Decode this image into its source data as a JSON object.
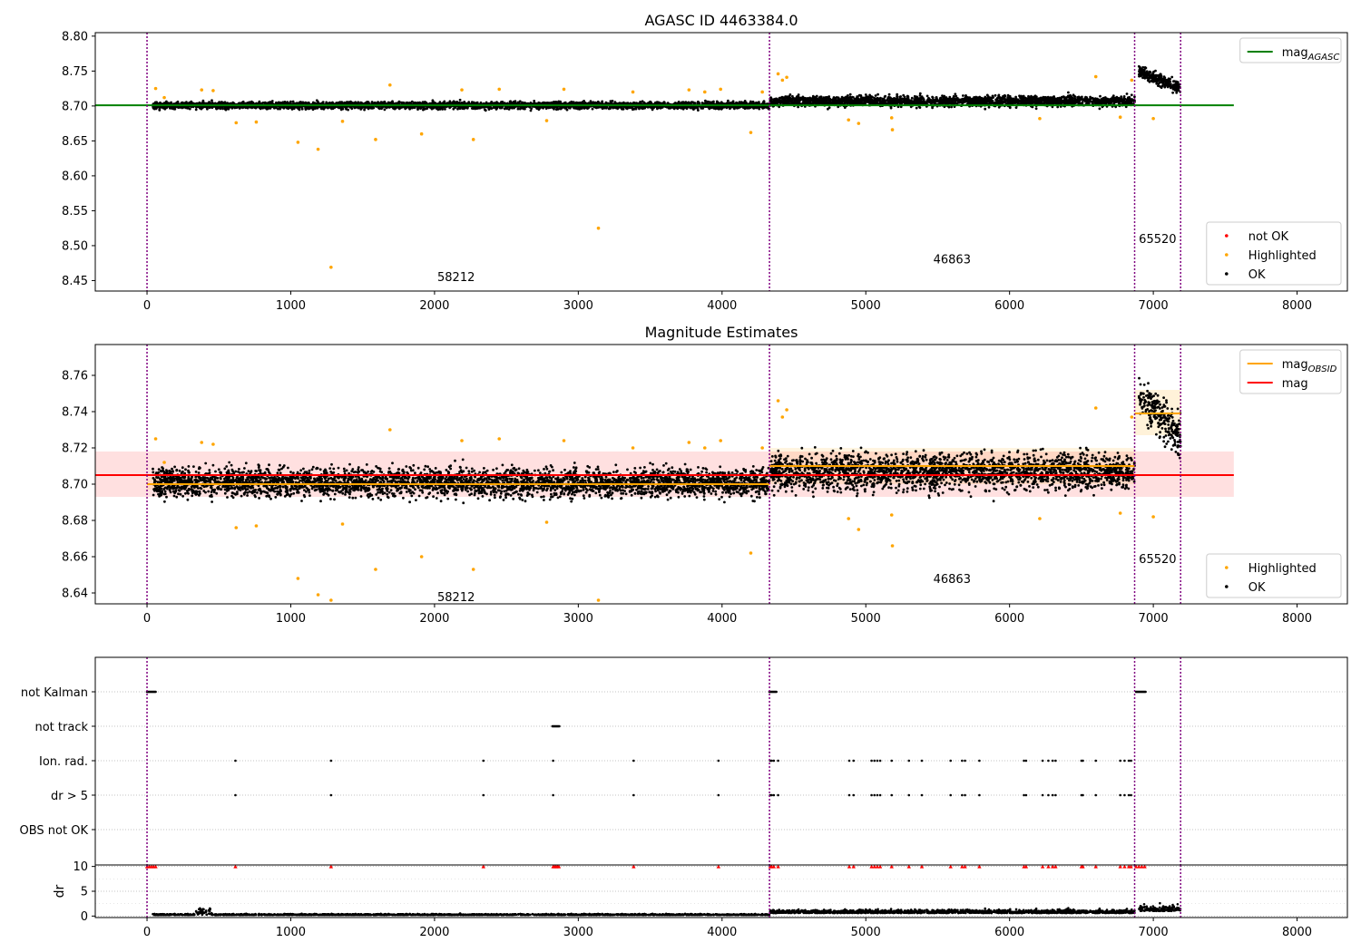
{
  "chart_data": [
    {
      "type": "scatter",
      "title": "AGASC ID 4463384.0",
      "xlim": [
        -360,
        8350
      ],
      "ylim": [
        8.435,
        8.805
      ],
      "xticks": [
        0,
        1000,
        2000,
        3000,
        4000,
        5000,
        6000,
        7000,
        8000
      ],
      "yticks": [
        8.45,
        8.5,
        8.55,
        8.6,
        8.65,
        8.7,
        8.75,
        8.8
      ],
      "ytick_decimals": 2,
      "grid": false,
      "obs_boundaries": [
        0,
        4330,
        6870,
        7190
      ],
      "obsid_labels": [
        {
          "text": "58212",
          "x": 2150,
          "y": 8.456
        },
        {
          "text": "46863",
          "x": 5600,
          "y": 8.481
        },
        {
          "text": "65520",
          "x": 7030,
          "y": 8.51
        }
      ],
      "lines": [
        {
          "name": "mag_AGASC",
          "color": "#008000",
          "x": [
            -360,
            7560
          ],
          "y": [
            8.701,
            8.701
          ]
        }
      ],
      "legends": [
        {
          "position": "top-right",
          "entries": [
            {
              "kind": "line",
              "color": "#008000",
              "label": "mag",
              "sub": "AGASC"
            }
          ]
        },
        {
          "position": "bottom-right",
          "entries": [
            {
              "kind": "dot",
              "color": "#ff0000",
              "label": "not OK"
            },
            {
              "kind": "dot",
              "color": "#ffa500",
              "label": "Highlighted"
            },
            {
              "kind": "dot",
              "color": "#000000",
              "label": "OK"
            }
          ]
        }
      ],
      "segments": [
        {
          "x": [
            40,
            4330
          ],
          "center": 8.701,
          "spread": 0.004,
          "color": "#000000"
        },
        {
          "x": [
            4335,
            6870
          ],
          "center": 8.707,
          "spread": 0.006,
          "color": "#000000"
        },
        {
          "x": [
            6900,
            7190
          ],
          "center": 8.741,
          "spread": 0.007,
          "color": "#000000"
        }
      ],
      "highlighted": {
        "color": "#ffa500",
        "x": [
          60,
          120,
          380,
          460,
          620,
          760,
          1050,
          1190,
          1280,
          1360,
          1590,
          1690,
          1910,
          2190,
          2270,
          2450,
          2780,
          2900,
          3140,
          3380,
          3770,
          3880,
          3990,
          4200,
          4280,
          4390,
          4420,
          4450,
          4880,
          4950,
          5180,
          5185,
          6210,
          6600,
          6770,
          6850,
          7000
        ],
        "y": [
          8.725,
          8.712,
          8.723,
          8.722,
          8.676,
          8.677,
          8.648,
          8.638,
          8.469,
          8.678,
          8.652,
          8.73,
          8.66,
          8.723,
          8.652,
          8.724,
          8.679,
          8.724,
          8.525,
          8.72,
          8.723,
          8.72,
          8.724,
          8.662,
          8.72,
          8.746,
          8.737,
          8.741,
          8.68,
          8.675,
          8.683,
          8.666,
          8.682,
          8.742,
          8.684,
          8.737,
          8.682
        ]
      }
    },
    {
      "type": "scatter",
      "title": "Magnitude Estimates",
      "xlim": [
        -360,
        8350
      ],
      "ylim": [
        8.634,
        8.777
      ],
      "xticks": [
        0,
        1000,
        2000,
        3000,
        4000,
        5000,
        6000,
        7000,
        8000
      ],
      "yticks": [
        8.64,
        8.66,
        8.68,
        8.7,
        8.72,
        8.74,
        8.76
      ],
      "ytick_decimals": 2,
      "grid": false,
      "obs_boundaries": [
        0,
        4330,
        6870,
        7190
      ],
      "obsid_labels": [
        {
          "text": "58212",
          "x": 2150,
          "y": 8.638
        },
        {
          "text": "46863",
          "x": 5600,
          "y": 8.648
        },
        {
          "text": "65520",
          "x": 7030,
          "y": 8.659
        }
      ],
      "bands": [
        {
          "color": "#ff0000",
          "opacity": 0.12,
          "x": [
            -360,
            7560
          ],
          "y": [
            8.693,
            8.718
          ]
        },
        {
          "color": "#ffa500",
          "opacity": 0.12,
          "x": [
            0,
            4330
          ],
          "y": [
            8.697,
            8.704
          ]
        },
        {
          "color": "#ffa500",
          "opacity": 0.12,
          "x": [
            4330,
            6870
          ],
          "y": [
            8.7,
            8.72
          ]
        },
        {
          "color": "#ffa500",
          "opacity": 0.15,
          "x": [
            6870,
            7190
          ],
          "y": [
            8.727,
            8.752
          ]
        }
      ],
      "lines": [
        {
          "name": "mag_OBSID",
          "color": "#ffa500",
          "x": [
            0,
            4330
          ],
          "y": [
            8.7,
            8.7
          ]
        },
        {
          "name": "mag_OBSID",
          "color": "#ffa500",
          "x": [
            4330,
            6870
          ],
          "y": [
            8.71,
            8.71
          ]
        },
        {
          "name": "mag_OBSID",
          "color": "#ffa500",
          "x": [
            6870,
            7190
          ],
          "y": [
            8.739,
            8.739
          ]
        },
        {
          "name": "mag",
          "color": "#ff0000",
          "x": [
            -360,
            7560
          ],
          "y": [
            8.705,
            8.705
          ]
        }
      ],
      "legends": [
        {
          "position": "top-right",
          "entries": [
            {
              "kind": "line",
              "color": "#ffa500",
              "label": "mag",
              "sub": "OBSID"
            },
            {
              "kind": "line",
              "color": "#ff0000",
              "label": "mag"
            }
          ]
        },
        {
          "position": "bottom-right",
          "entries": [
            {
              "kind": "dot",
              "color": "#ffa500",
              "label": "Highlighted"
            },
            {
              "kind": "dot",
              "color": "#000000",
              "label": "OK"
            }
          ]
        }
      ],
      "segments": [
        {
          "x": [
            40,
            4330
          ],
          "center": 8.701,
          "spread": 0.0065,
          "color": "#000000"
        },
        {
          "x": [
            4335,
            6870
          ],
          "center": 8.707,
          "spread": 0.0085,
          "color": "#000000"
        },
        {
          "x": [
            6900,
            7190
          ],
          "center": 8.741,
          "spread": 0.009,
          "color": "#000000"
        }
      ],
      "highlighted": {
        "color": "#ffa500",
        "x": [
          60,
          120,
          380,
          460,
          620,
          760,
          1050,
          1190,
          1280,
          1360,
          1590,
          1690,
          1910,
          2190,
          2270,
          2450,
          2780,
          2900,
          3140,
          3380,
          3770,
          3880,
          3990,
          4200,
          4280,
          4390,
          4420,
          4450,
          4880,
          4950,
          5180,
          5185,
          6210,
          6600,
          6770,
          6850,
          7000
        ],
        "y": [
          8.725,
          8.712,
          8.723,
          8.722,
          8.676,
          8.677,
          8.648,
          8.639,
          8.636,
          8.678,
          8.653,
          8.73,
          8.66,
          8.724,
          8.653,
          8.725,
          8.679,
          8.724,
          8.636,
          8.72,
          8.723,
          8.72,
          8.724,
          8.662,
          8.72,
          8.746,
          8.737,
          8.741,
          8.681,
          8.675,
          8.683,
          8.666,
          8.681,
          8.742,
          8.684,
          8.737,
          8.682
        ]
      }
    },
    {
      "type": "scatter",
      "title": "",
      "xlim": [
        -360,
        8350
      ],
      "rows": [
        "not Kalman",
        "not track",
        "Ion. rad.",
        "dr > 5",
        "OBS not OK"
      ],
      "obs_boundaries": [
        0,
        4330,
        6870,
        7190
      ],
      "flags": {
        "not Kalman": [
          [
            0,
            60
          ],
          [
            4330,
            4380
          ],
          [
            6880,
            6950
          ]
        ],
        "not track": [
          [
            2820,
            2870
          ]
        ],
        "Ion. rad.": [
          615,
          1280,
          2340,
          2825,
          3385,
          3975,
          4335,
          4345,
          4360,
          4390,
          4885,
          4915,
          5040,
          5060,
          5080,
          5100,
          5180,
          5300,
          5390,
          5590,
          5670,
          5690,
          5790,
          6100,
          6115,
          6230,
          6270,
          6300,
          6320,
          6500,
          6510,
          6600,
          6770,
          6800,
          6830,
          6845
        ],
        "dr > 5": [
          615,
          1280,
          2340,
          2825,
          3385,
          3975,
          4335,
          4345,
          4360,
          4390,
          4885,
          4915,
          5040,
          5060,
          5080,
          5100,
          5180,
          5300,
          5390,
          5590,
          5670,
          5690,
          5790,
          6100,
          6115,
          6230,
          6270,
          6300,
          6320,
          6500,
          6510,
          6600,
          6770,
          6800,
          6830,
          6845
        ],
        "OBS not OK": []
      }
    },
    {
      "type": "scatter",
      "title": "",
      "ylabel": "dr",
      "xlim": [
        -360,
        8350
      ],
      "ylim": [
        -0.3,
        10.3
      ],
      "xticks": [
        0,
        1000,
        2000,
        3000,
        4000,
        5000,
        6000,
        7000,
        8000
      ],
      "yticks": [
        0,
        5,
        10
      ],
      "ytick_decimals": 0,
      "grid": true,
      "obs_boundaries": [
        0,
        4330,
        6870,
        7190
      ],
      "clipped_marker_color": "#ff0000",
      "clipped_x": [
        0,
        15,
        30,
        45,
        60,
        615,
        1280,
        2340,
        2825,
        2835,
        2845,
        2855,
        2865,
        3385,
        3975,
        4335,
        4345,
        4360,
        4390,
        4885,
        4915,
        5040,
        5060,
        5080,
        5100,
        5180,
        5300,
        5390,
        5590,
        5670,
        5690,
        5790,
        6100,
        6115,
        6230,
        6270,
        6300,
        6320,
        6500,
        6510,
        6600,
        6770,
        6800,
        6830,
        6845,
        6880,
        6900,
        6920,
        6940
      ],
      "dr_segments": [
        {
          "x": [
            40,
            4330
          ],
          "level": 0.2
        },
        {
          "x": [
            4335,
            6870
          ],
          "level": 0.6
        },
        {
          "x": [
            6900,
            7190
          ],
          "level": 1.0
        }
      ]
    }
  ]
}
